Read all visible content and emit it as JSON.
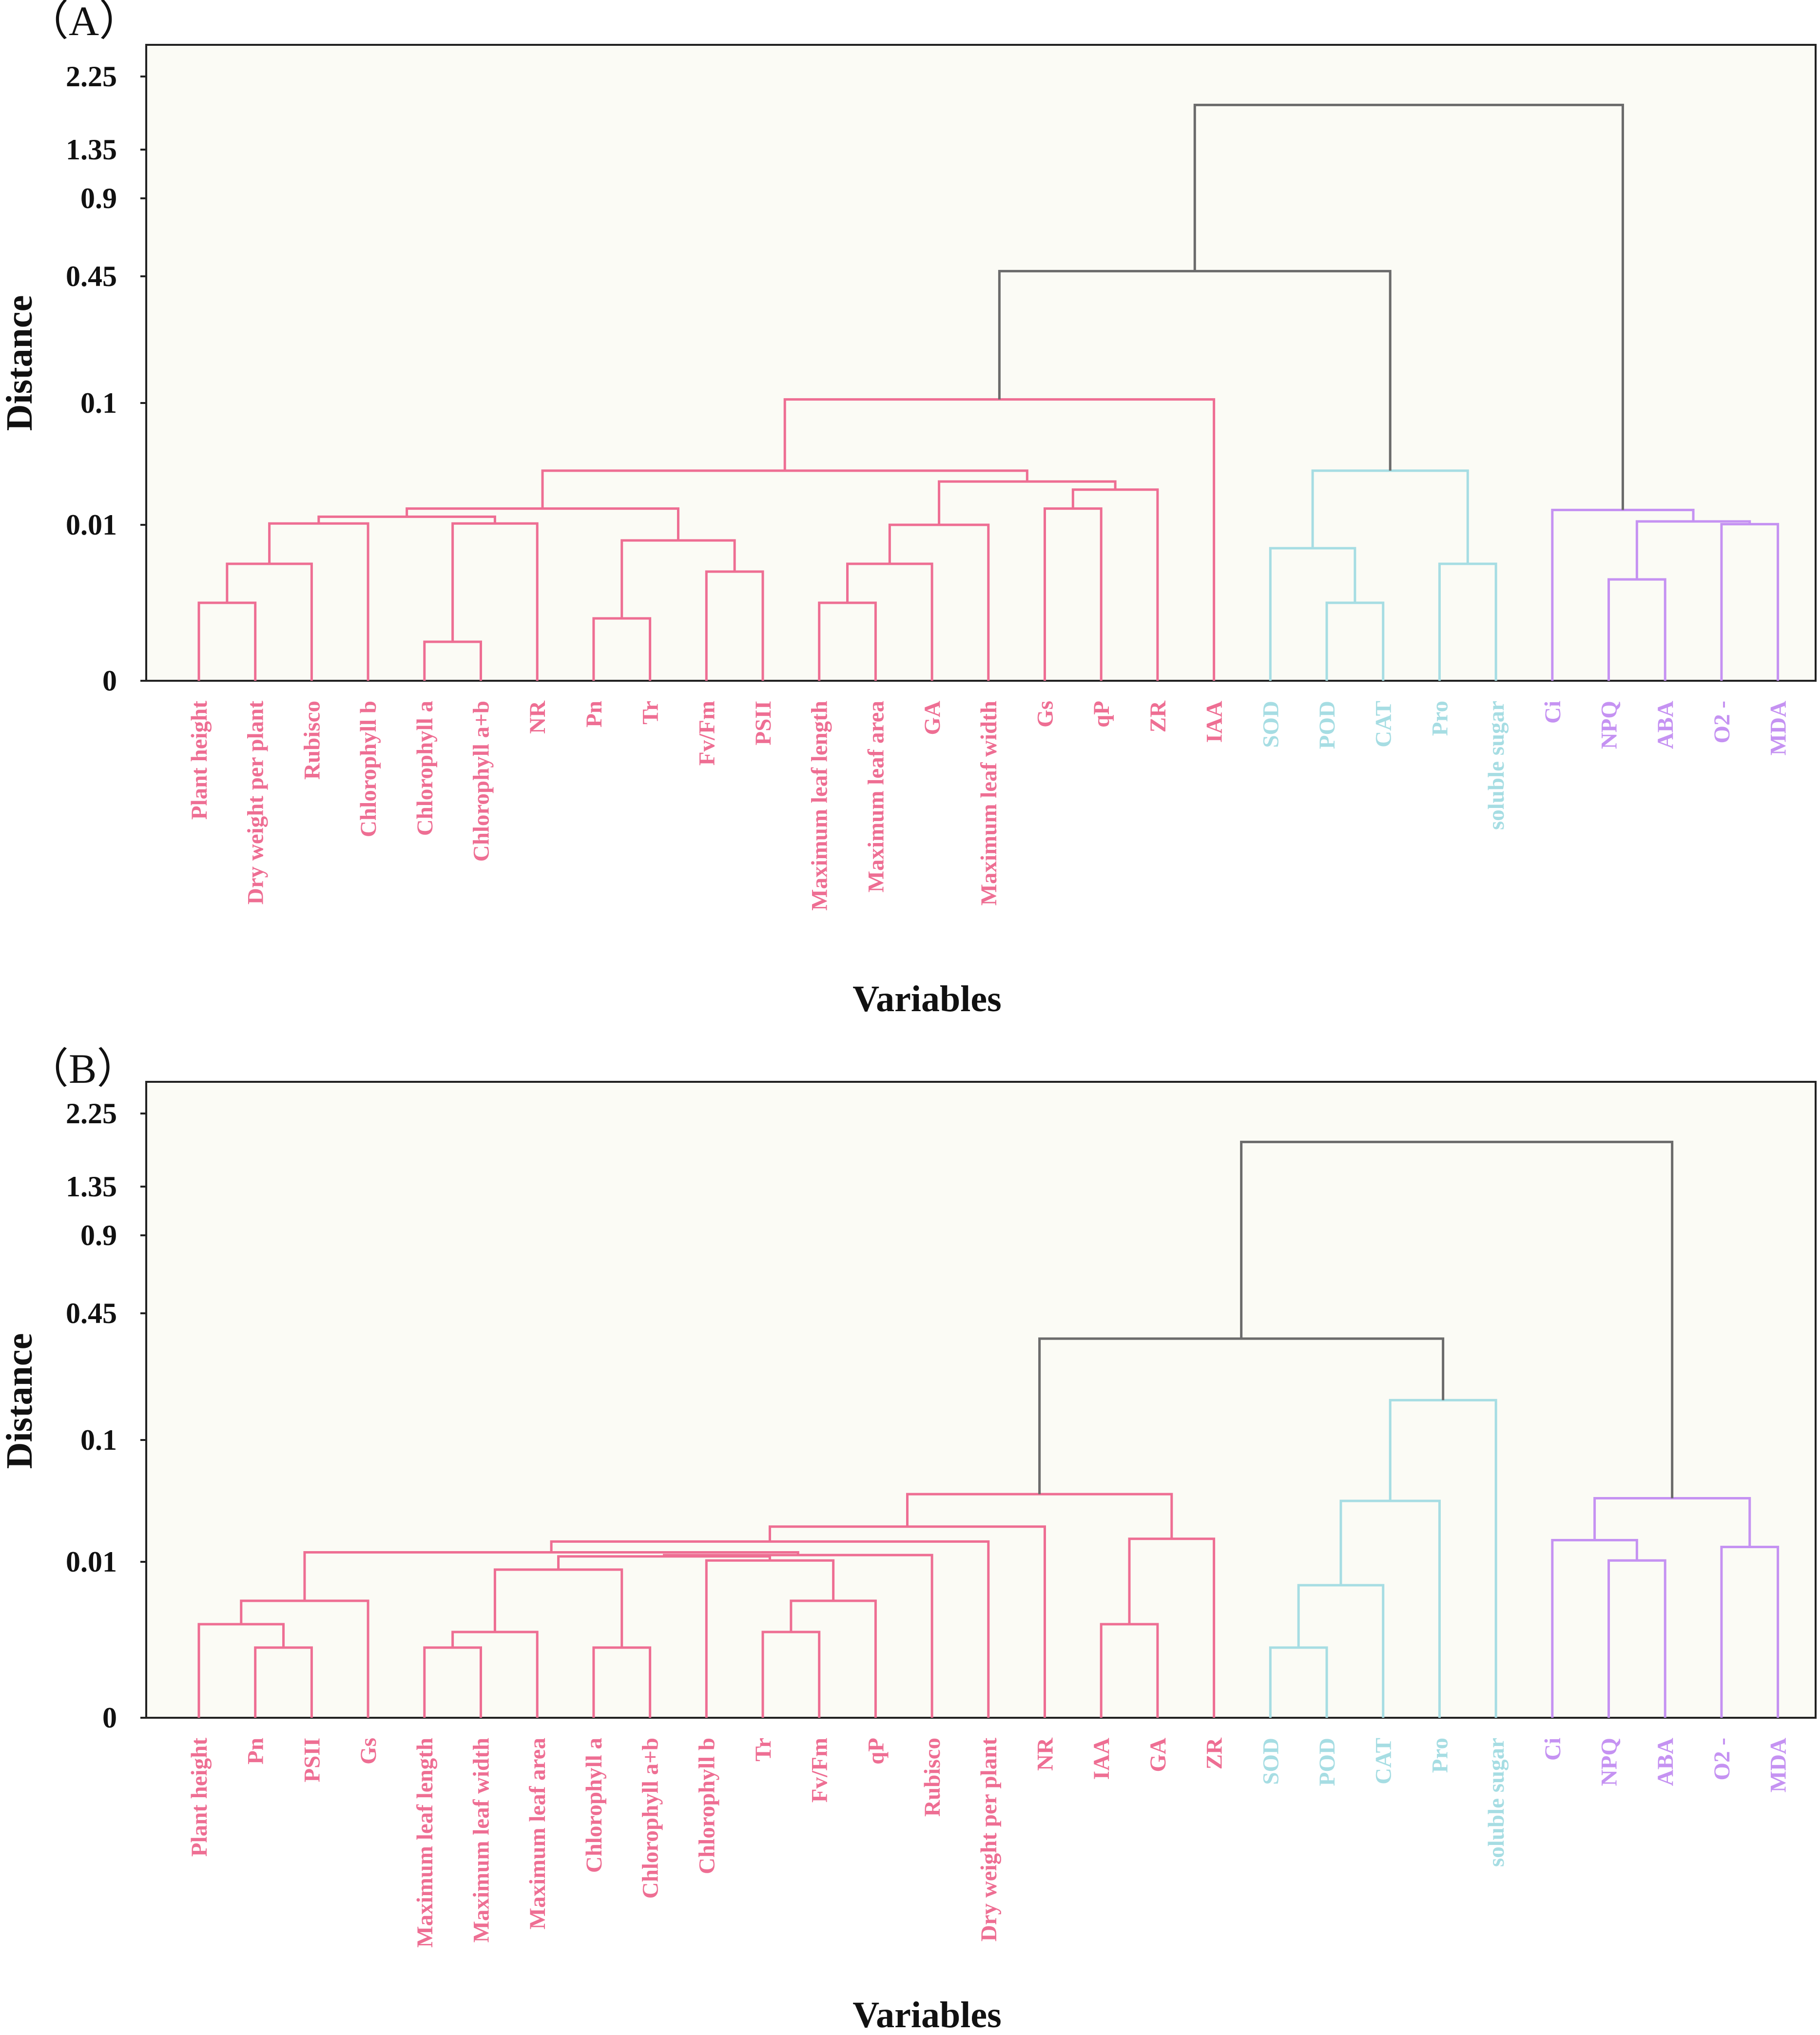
{
  "colors": {
    "background": "#fbfbf5",
    "growth": "#ee6e93",
    "stress": "#a6dde3",
    "oxidative": "#c592f2",
    "root": "#6b6b6b"
  },
  "chart_data": [
    {
      "type": "dendrogram",
      "panel": "（A）",
      "xlabel": "Variables",
      "ylabel": "Distance",
      "yticks": [
        0,
        0.01,
        0.1,
        0.45,
        0.9,
        1.35,
        2.25
      ],
      "ytick_labels": [
        "0",
        "0.01",
        "0.1",
        "0.45",
        "0.9",
        "1.35",
        "2.25"
      ],
      "leaves": [
        {
          "label": "Plant height",
          "group": "growth"
        },
        {
          "label": "Dry weight per plant",
          "group": "growth"
        },
        {
          "label": "Rubisco",
          "group": "growth"
        },
        {
          "label": "Chlorophyll b",
          "group": "growth"
        },
        {
          "label": "Chlorophyll a",
          "group": "growth"
        },
        {
          "label": "Chlorophyll a+b",
          "group": "growth"
        },
        {
          "label": "NR",
          "group": "growth"
        },
        {
          "label": "Pn",
          "group": "growth"
        },
        {
          "label": "Tr",
          "group": "growth"
        },
        {
          "label": "Fv/Fm",
          "group": "growth"
        },
        {
          "label": "PSII",
          "group": "growth"
        },
        {
          "label": "Maximum  leaf length",
          "group": "growth"
        },
        {
          "label": "Maximum leaf area",
          "group": "growth"
        },
        {
          "label": "GA",
          "group": "growth"
        },
        {
          "label": "Maximum leaf width",
          "group": "growth"
        },
        {
          "label": "Gs",
          "group": "growth"
        },
        {
          "label": "qP",
          "group": "growth"
        },
        {
          "label": "ZR",
          "group": "growth"
        },
        {
          "label": "IAA",
          "group": "growth"
        },
        {
          "label": "SOD",
          "group": "stress"
        },
        {
          "label": "POD",
          "group": "stress"
        },
        {
          "label": "CAT",
          "group": "stress"
        },
        {
          "label": "Pro",
          "group": "stress"
        },
        {
          "label": "soluble sugar",
          "group": "stress"
        },
        {
          "label": "Ci",
          "group": "oxidative"
        },
        {
          "label": "NPQ",
          "group": "oxidative"
        },
        {
          "label": "ABA",
          "group": "oxidative"
        },
        {
          "label": "O2 -",
          "group": "oxidative"
        },
        {
          "label": "MDA",
          "group": "oxidative"
        }
      ],
      "merges": [
        [
          0,
          1,
          0.005,
          "growth"
        ],
        [
          -1,
          2,
          0.0075,
          "growth"
        ],
        [
          -2,
          3,
          0.011,
          "growth"
        ],
        [
          4,
          5,
          0.0025,
          "growth"
        ],
        [
          -4,
          6,
          0.011,
          "growth"
        ],
        [
          -3,
          -5,
          0.016,
          "growth"
        ],
        [
          7,
          8,
          0.004,
          "growth"
        ],
        [
          9,
          10,
          0.007,
          "growth"
        ],
        [
          -7,
          -8,
          0.009,
          "growth"
        ],
        [
          -6,
          -9,
          0.022,
          "growth"
        ],
        [
          11,
          12,
          0.005,
          "growth"
        ],
        [
          -11,
          13,
          0.0075,
          "growth"
        ],
        [
          -12,
          14,
          0.01,
          "growth"
        ],
        [
          15,
          16,
          0.022,
          "growth"
        ],
        [
          -14,
          17,
          0.036,
          "growth"
        ],
        [
          -13,
          -15,
          0.042,
          "growth"
        ],
        [
          -10,
          -16,
          0.05,
          "growth"
        ],
        [
          -17,
          18,
          0.11,
          "growth"
        ],
        [
          20,
          21,
          0.005,
          "stress"
        ],
        [
          19,
          -19,
          0.0085,
          "stress"
        ],
        [
          22,
          23,
          0.0075,
          "stress"
        ],
        [
          -20,
          -21,
          0.05,
          "stress"
        ],
        [
          25,
          26,
          0.0065,
          "oxidative"
        ],
        [
          27,
          28,
          0.0105,
          "oxidative"
        ],
        [
          -23,
          -24,
          0.0125,
          "oxidative"
        ],
        [
          24,
          -25,
          0.021,
          "oxidative"
        ],
        [
          -18,
          -22,
          0.48,
          "root"
        ],
        [
          -27,
          -26,
          1.9,
          "root"
        ]
      ]
    },
    {
      "type": "dendrogram",
      "panel": "（B）",
      "xlabel": "Variables",
      "ylabel": "Distance",
      "yticks": [
        0,
        0.01,
        0.1,
        0.45,
        0.9,
        1.35,
        2.25
      ],
      "ytick_labels": [
        "0",
        "0.01",
        "0.1",
        "0.45",
        "0.9",
        "1.35",
        "2.25"
      ],
      "leaves": [
        {
          "label": "Plant height",
          "group": "growth"
        },
        {
          "label": "Pn",
          "group": "growth"
        },
        {
          "label": "PSII",
          "group": "growth"
        },
        {
          "label": "Gs",
          "group": "growth"
        },
        {
          "label": "Maximum  leaf length",
          "group": "growth"
        },
        {
          "label": "Maximum leaf width",
          "group": "growth"
        },
        {
          "label": "Maximum leaf area",
          "group": "growth"
        },
        {
          "label": "Chlorophyll a",
          "group": "growth"
        },
        {
          "label": "Chlorophyll a+b",
          "group": "growth"
        },
        {
          "label": "Chlorophyll b",
          "group": "growth"
        },
        {
          "label": "Tr",
          "group": "growth"
        },
        {
          "label": "Fv/Fm",
          "group": "growth"
        },
        {
          "label": "qP",
          "group": "growth"
        },
        {
          "label": "Rubisco",
          "group": "growth"
        },
        {
          "label": "Dry weight per plant",
          "group": "growth"
        },
        {
          "label": "NR",
          "group": "growth"
        },
        {
          "label": "IAA",
          "group": "growth"
        },
        {
          "label": "GA",
          "group": "growth"
        },
        {
          "label": "ZR",
          "group": "growth"
        },
        {
          "label": "SOD",
          "group": "stress"
        },
        {
          "label": "POD",
          "group": "stress"
        },
        {
          "label": "CAT",
          "group": "stress"
        },
        {
          "label": "Pro",
          "group": "stress"
        },
        {
          "label": "soluble sugar",
          "group": "stress"
        },
        {
          "label": "Ci",
          "group": "oxidative"
        },
        {
          "label": "NPQ",
          "group": "oxidative"
        },
        {
          "label": "ABA",
          "group": "oxidative"
        },
        {
          "label": "O2 -",
          "group": "oxidative"
        },
        {
          "label": "MDA",
          "group": "oxidative"
        }
      ],
      "merges": [
        [
          1,
          2,
          0.0045,
          "growth"
        ],
        [
          0,
          -1,
          0.006,
          "growth"
        ],
        [
          -2,
          3,
          0.0075,
          "growth"
        ],
        [
          4,
          5,
          0.0045,
          "growth"
        ],
        [
          -4,
          6,
          0.0055,
          "growth"
        ],
        [
          7,
          8,
          0.0045,
          "growth"
        ],
        [
          -5,
          -6,
          0.0095,
          "growth"
        ],
        [
          10,
          11,
          0.0055,
          "growth"
        ],
        [
          -8,
          12,
          0.0075,
          "growth"
        ],
        [
          9,
          -9,
          0.011,
          "growth"
        ],
        [
          -7,
          -10,
          0.014,
          "growth"
        ],
        [
          -11,
          13,
          0.015,
          "growth"
        ],
        [
          -3,
          -12,
          0.017,
          "growth"
        ],
        [
          -13,
          14,
          0.025,
          "growth"
        ],
        [
          -14,
          15,
          0.036,
          "growth"
        ],
        [
          16,
          17,
          0.006,
          "growth"
        ],
        [
          -16,
          18,
          0.027,
          "growth"
        ],
        [
          -15,
          -17,
          0.06,
          "growth"
        ],
        [
          19,
          20,
          0.0045,
          "stress"
        ],
        [
          -19,
          21,
          0.0085,
          "stress"
        ],
        [
          -20,
          22,
          0.055,
          "stress"
        ],
        [
          -21,
          23,
          0.21,
          "stress"
        ],
        [
          25,
          26,
          0.011,
          "oxidative"
        ],
        [
          24,
          -23,
          0.026,
          "oxidative"
        ],
        [
          27,
          28,
          0.021,
          "oxidative"
        ],
        [
          -24,
          -25,
          0.057,
          "oxidative"
        ],
        [
          -18,
          -22,
          0.38,
          "root"
        ],
        [
          -27,
          -26,
          1.9,
          "root"
        ]
      ]
    }
  ]
}
